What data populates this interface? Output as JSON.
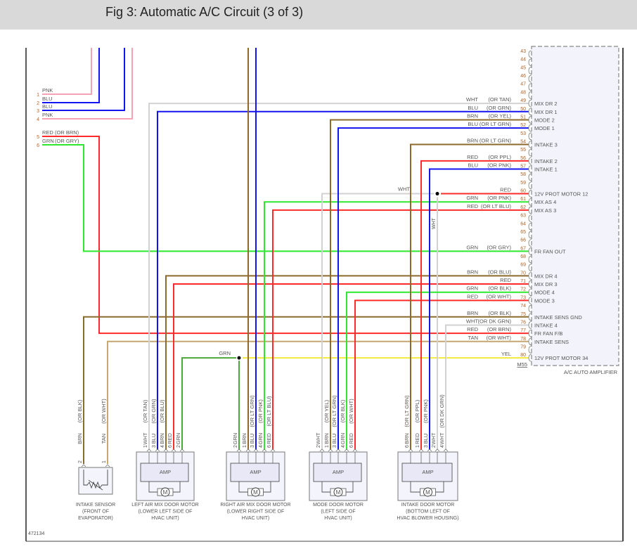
{
  "header": {
    "title": "Fig 3: Automatic A/C Circuit (3 of 3)"
  },
  "figure_id": "472134",
  "wire_colors": {
    "PNK": "#f7a1b5",
    "BLU": "#1414f0",
    "BRN": "#8c6a2c",
    "RED": "#ff2a2a",
    "GRN": "#2ee82e",
    "GRN_SPLICE": "#4aa83a",
    "WHT": "#d2d2d2",
    "TAN": "#c4a870",
    "YEL": "#f2ea3a"
  },
  "left_connector": {
    "pins": [
      {
        "n": "1",
        "color": "PNK",
        "alt": ""
      },
      {
        "n": "2",
        "color": "BLU",
        "alt": ""
      },
      {
        "n": "3",
        "color": "BLU",
        "alt": ""
      },
      {
        "n": "4",
        "color": "PNK",
        "alt": ""
      },
      {
        "n": "5",
        "color": "RED",
        "alt": "(OR BRN)"
      },
      {
        "n": "6",
        "color": "GRN",
        "alt": "(OR GRY)"
      }
    ]
  },
  "splice_labels": {
    "grn": "GRN",
    "wht": "WHT"
  },
  "amplifier": {
    "name": "A/C AUTO AMPLIFIER",
    "connector": "M55",
    "pins": [
      {
        "n": "43",
        "color": "",
        "alt": "",
        "func": ""
      },
      {
        "n": "44",
        "color": "",
        "alt": "",
        "func": ""
      },
      {
        "n": "45",
        "color": "",
        "alt": "",
        "func": ""
      },
      {
        "n": "46",
        "color": "",
        "alt": "",
        "func": ""
      },
      {
        "n": "47",
        "color": "",
        "alt": "",
        "func": ""
      },
      {
        "n": "48",
        "color": "",
        "alt": "",
        "func": ""
      },
      {
        "n": "49",
        "color": "WHT",
        "alt": "(OR TAN)",
        "func": "MIX DR 2"
      },
      {
        "n": "50",
        "color": "BLU",
        "alt": "(OR GRN)",
        "func": "MIX DR 1"
      },
      {
        "n": "51",
        "color": "BRN",
        "alt": "(OR YEL)",
        "func": "MODE 2"
      },
      {
        "n": "52",
        "color": "BLU",
        "alt": "(OR LT GRN)",
        "func": "MODE 1"
      },
      {
        "n": "53",
        "color": "",
        "alt": "",
        "func": ""
      },
      {
        "n": "54",
        "color": "BRN",
        "alt": "(OR LT GRN)",
        "func": "INTAKE 3"
      },
      {
        "n": "55",
        "color": "",
        "alt": "",
        "func": ""
      },
      {
        "n": "56",
        "color": "RED",
        "alt": "(OR PPL)",
        "func": "INTAKE 2"
      },
      {
        "n": "57",
        "color": "BLU",
        "alt": "(OR PNK)",
        "func": "INTAKE 1"
      },
      {
        "n": "58",
        "color": "",
        "alt": "",
        "func": ""
      },
      {
        "n": "59",
        "color": "",
        "alt": "",
        "func": ""
      },
      {
        "n": "60",
        "color": "RED",
        "alt": "",
        "func": "12V PROT MOTOR 12"
      },
      {
        "n": "61",
        "color": "GRN",
        "alt": "(OR PNK)",
        "func": "MIX AS 4"
      },
      {
        "n": "62",
        "color": "RED",
        "alt": "(OR LT BLU)",
        "func": "MIX AS 3"
      },
      {
        "n": "63",
        "color": "",
        "alt": "",
        "func": ""
      },
      {
        "n": "64",
        "color": "",
        "alt": "",
        "func": ""
      },
      {
        "n": "65",
        "color": "",
        "alt": "",
        "func": ""
      },
      {
        "n": "66",
        "color": "",
        "alt": "",
        "func": ""
      },
      {
        "n": "67",
        "color": "GRN",
        "alt": "(OR GRY)",
        "func": "FR FAN OUT"
      },
      {
        "n": "68",
        "color": "",
        "alt": "",
        "func": ""
      },
      {
        "n": "69",
        "color": "",
        "alt": "",
        "func": ""
      },
      {
        "n": "70",
        "color": "BRN",
        "alt": "(OR BLU)",
        "func": "MIX DR 4"
      },
      {
        "n": "71",
        "color": "RED",
        "alt": "",
        "func": "MIX DR 3"
      },
      {
        "n": "72",
        "color": "GRN",
        "alt": "(OR BLK)",
        "func": "MODE 4"
      },
      {
        "n": "73",
        "color": "RED",
        "alt": "(OR WHT)",
        "func": "MODE 3"
      },
      {
        "n": "74",
        "color": "",
        "alt": "",
        "func": ""
      },
      {
        "n": "75",
        "color": "BRN",
        "alt": "(OR BLK)",
        "func": "INTAKE SENS GND"
      },
      {
        "n": "76",
        "color": "WHT",
        "alt": "(OR DK GRN)",
        "func": "INTAKE 4"
      },
      {
        "n": "77",
        "color": "RED",
        "alt": "(OR BRN)",
        "func": "FR FAN F/B"
      },
      {
        "n": "78",
        "color": "TAN",
        "alt": "(OR WHT)",
        "func": "INTAKE SENS"
      },
      {
        "n": "79",
        "color": "",
        "alt": "",
        "func": ""
      },
      {
        "n": "80",
        "color": "YEL",
        "alt": "",
        "func": "12V PROT MOTOR 34"
      }
    ]
  },
  "components": [
    {
      "id": "intake-sensor",
      "name": [
        "INTAKE SENSOR",
        "(FRONT OF",
        "EVAPORATOR)"
      ],
      "amp_label": "",
      "pins": [
        {
          "n": "2",
          "color": "BRN",
          "alt": "(OR BLK)"
        },
        {
          "n": "1",
          "color": "TAN",
          "alt": "(OR WHT)"
        }
      ]
    },
    {
      "id": "left-air-mix-door-motor",
      "name": [
        "LEFT AIR MIX DOOR MOTOR",
        "(LOWER LEFT SIDE OF",
        "HVAC UNIT)"
      ],
      "amp_label": "AMP",
      "pins": [
        {
          "n": "1",
          "color": "WHT",
          "alt": "(OR TAN)"
        },
        {
          "n": "3",
          "color": "BLU",
          "alt": "(OR GRN)"
        },
        {
          "n": "4",
          "color": "BRN",
          "alt": "(OR BLU)"
        },
        {
          "n": "6",
          "color": "RED",
          "alt": ""
        },
        {
          "n": "2",
          "color": "GRN",
          "alt": ""
        }
      ]
    },
    {
      "id": "right-air-mix-door-motor",
      "name": [
        "RIGHT AIR MIX DOOR MOTOR",
        "(LOWER RIGHT SIDE OF",
        "HVAC UNIT)"
      ],
      "amp_label": "AMP",
      "pins": [
        {
          "n": "2",
          "color": "GRN",
          "alt": ""
        },
        {
          "n": "1",
          "color": "BRN",
          "alt": ""
        },
        {
          "n": "3",
          "color": "BLU",
          "alt": "(OR LT GRN)"
        },
        {
          "n": "4",
          "color": "GRN",
          "alt": "(OR PNK)"
        },
        {
          "n": "6",
          "color": "RED",
          "alt": "(OR LT BLU)"
        }
      ]
    },
    {
      "id": "mode-door-motor",
      "name": [
        "MODE DOOR MOTOR",
        "(LEFT SIDE OF",
        "HVAC UNIT)"
      ],
      "amp_label": "AMP",
      "pins": [
        {
          "n": "2",
          "color": "WHT",
          "alt": ""
        },
        {
          "n": "1",
          "color": "BRN",
          "alt": "(OR YEL)"
        },
        {
          "n": "3",
          "color": "BLU",
          "alt": "(OR LT GRN)"
        },
        {
          "n": "4",
          "color": "GRN",
          "alt": "(OR BLK)"
        },
        {
          "n": "6",
          "color": "RED",
          "alt": "(OR WHT)"
        }
      ]
    },
    {
      "id": "intake-door-motor",
      "name": [
        "INTAKE DOOR MOTOR",
        "(BOTTOM LEFT OF",
        "HVAC BLOWER HOUSING)"
      ],
      "amp_label": "AMP",
      "pins": [
        {
          "n": "6",
          "color": "BRN",
          "alt": "(OR LT GRN)"
        },
        {
          "n": "1",
          "color": "RED",
          "alt": "(OR PPL)"
        },
        {
          "n": "3",
          "color": "BLU",
          "alt": "(OR PNK)"
        },
        {
          "n": "2",
          "color": "WHT",
          "alt": ""
        },
        {
          "n": "4",
          "color": "WHT",
          "alt": "(OR DK GRN)"
        }
      ]
    }
  ]
}
